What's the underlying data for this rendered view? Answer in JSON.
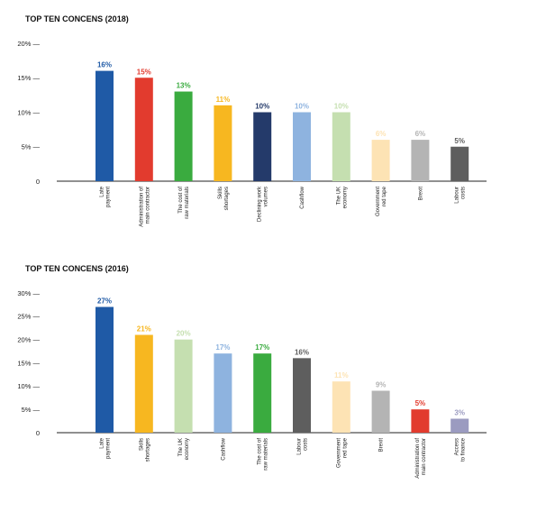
{
  "chart_data": [
    {
      "type": "bar",
      "title": "TOP TEN CONCENS (2018)",
      "ylim": [
        0,
        20
      ],
      "yticks": [
        "0",
        "5% —",
        "10% —",
        "15% —",
        "20% —"
      ],
      "ytick_values": [
        0,
        5,
        10,
        15,
        20
      ],
      "categories": [
        [
          "Late",
          "payment"
        ],
        [
          "Administration of",
          "main contractor"
        ],
        [
          "The cost of",
          "raw materials"
        ],
        [
          "Skills",
          "shortages"
        ],
        [
          "Declining work",
          "volumes"
        ],
        [
          "Cashflow"
        ],
        [
          "The UK",
          "economy"
        ],
        [
          "Government",
          "red tape"
        ],
        [
          "Brexit"
        ],
        [
          "Labour",
          "costs"
        ]
      ],
      "values": [
        16,
        15,
        13,
        11,
        10,
        10,
        10,
        6,
        6,
        5
      ],
      "data_labels": [
        "16%",
        "15%",
        "13%",
        "11%",
        "10%",
        "10%",
        "10%",
        "6%",
        "6%",
        "5%"
      ],
      "colors": [
        "#1f5aa6",
        "#e23b2e",
        "#3aab3f",
        "#f7b720",
        "#243a6a",
        "#8eb3df",
        "#c5dfb0",
        "#fde3b4",
        "#b4b4b4",
        "#5e5e5e"
      ],
      "grid": false
    },
    {
      "type": "bar",
      "title": "TOP TEN CONCENS (2016)",
      "ylim": [
        0,
        30
      ],
      "yticks": [
        "0",
        "5% —",
        "10% —",
        "15% —",
        "20% —",
        "25% —",
        "30% —"
      ],
      "ytick_values": [
        0,
        5,
        10,
        15,
        20,
        25,
        30
      ],
      "categories": [
        [
          "Late",
          "payment"
        ],
        [
          "Skills",
          "shortages"
        ],
        [
          "The UK",
          "economy"
        ],
        [
          "Cashflow"
        ],
        [
          "The cost of",
          "raw materials"
        ],
        [
          "Labour",
          "costs"
        ],
        [
          "Government",
          "red tape"
        ],
        [
          "Brexit"
        ],
        [
          "Administration of",
          "main contractor"
        ],
        [
          "Access",
          "to finance"
        ]
      ],
      "values": [
        27,
        21,
        20,
        17,
        17,
        16,
        11,
        9,
        5,
        3
      ],
      "data_labels": [
        "27%",
        "21%",
        "20%",
        "17%",
        "17%",
        "16%",
        "11%",
        "9%",
        "5%",
        "3%"
      ],
      "colors": [
        "#1f5aa6",
        "#f7b720",
        "#c5dfb0",
        "#8eb3df",
        "#3aab3f",
        "#5e5e5e",
        "#fde3b4",
        "#b4b4b4",
        "#e23b2e",
        "#9b9bc0"
      ],
      "grid": false
    }
  ]
}
